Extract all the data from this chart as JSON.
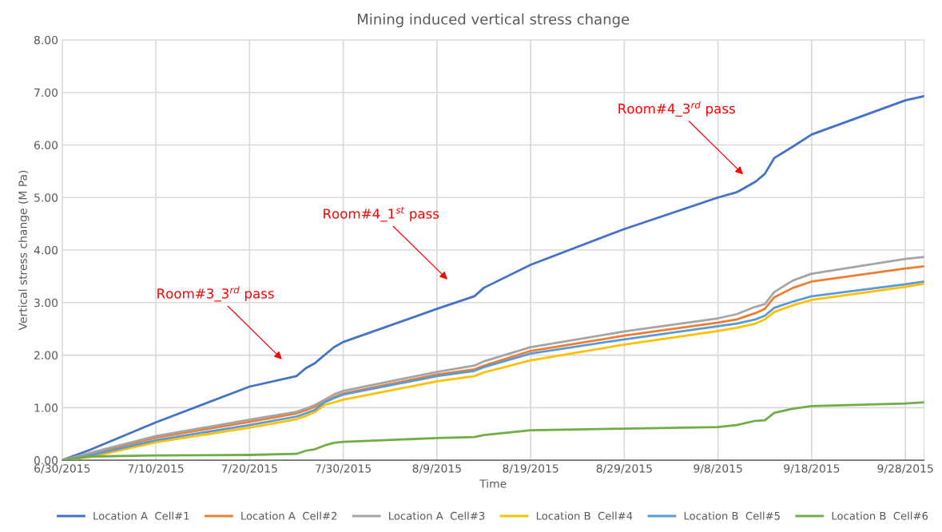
{
  "chart_data": {
    "type": "line",
    "title": "Mining induced vertical stress change",
    "xlabel": "Time",
    "ylabel": "Vertical stress change (M Pa)",
    "x": [
      "2015-06-30",
      "2015-07-03",
      "2015-07-10",
      "2015-07-20",
      "2015-07-25",
      "2015-07-26",
      "2015-07-27",
      "2015-07-28",
      "2015-07-29",
      "2015-07-30",
      "2015-08-09",
      "2015-08-13",
      "2015-08-14",
      "2015-08-19",
      "2015-08-29",
      "2015-09-08",
      "2015-09-10",
      "2015-09-12",
      "2015-09-13",
      "2015-09-14",
      "2015-09-16",
      "2015-09-18",
      "2015-09-28",
      "2015-09-30"
    ],
    "series": [
      {
        "name": "Location A  Cell#1",
        "color": "#4472c4",
        "values": [
          0,
          0.2,
          0.72,
          1.4,
          1.6,
          1.75,
          1.85,
          2.0,
          2.15,
          2.25,
          2.88,
          3.12,
          3.28,
          3.72,
          4.4,
          5.0,
          5.1,
          5.3,
          5.45,
          5.75,
          5.97,
          6.2,
          6.85,
          6.93
        ]
      },
      {
        "name": "Location A  Cell#2",
        "color": "#ed7d31",
        "values": [
          0,
          0.12,
          0.43,
          0.73,
          0.89,
          0.95,
          1.02,
          1.12,
          1.2,
          1.27,
          1.63,
          1.73,
          1.8,
          2.08,
          2.37,
          2.62,
          2.68,
          2.8,
          2.88,
          3.1,
          3.28,
          3.4,
          3.65,
          3.69
        ]
      },
      {
        "name": "Location A  Cell#3",
        "color": "#a5a5a5",
        "values": [
          0,
          0.14,
          0.46,
          0.77,
          0.92,
          0.98,
          1.05,
          1.15,
          1.25,
          1.32,
          1.68,
          1.8,
          1.88,
          2.15,
          2.45,
          2.7,
          2.78,
          2.92,
          2.97,
          3.2,
          3.42,
          3.55,
          3.83,
          3.87
        ]
      },
      {
        "name": "Location B  Cell#4",
        "color": "#ffc000",
        "values": [
          0,
          0.06,
          0.34,
          0.62,
          0.78,
          0.84,
          0.92,
          1.05,
          1.1,
          1.15,
          1.5,
          1.6,
          1.67,
          1.9,
          2.2,
          2.46,
          2.52,
          2.6,
          2.68,
          2.82,
          2.95,
          3.05,
          3.3,
          3.36
        ]
      },
      {
        "name": "Location B  Cell#5",
        "color": "#5b9bd5",
        "values": [
          0,
          0.09,
          0.38,
          0.67,
          0.83,
          0.89,
          0.96,
          1.1,
          1.18,
          1.25,
          1.6,
          1.7,
          1.77,
          2.03,
          2.3,
          2.55,
          2.6,
          2.68,
          2.75,
          2.9,
          3.02,
          3.12,
          3.35,
          3.4
        ]
      },
      {
        "name": "Location B  Cell#6",
        "color": "#70ad47",
        "values": [
          0,
          0.07,
          0.09,
          0.1,
          0.12,
          0.18,
          0.21,
          0.28,
          0.33,
          0.35,
          0.42,
          0.44,
          0.48,
          0.57,
          0.6,
          0.63,
          0.67,
          0.75,
          0.76,
          0.9,
          0.98,
          1.03,
          1.08,
          1.1
        ]
      }
    ],
    "xlim": [
      "2015-06-30",
      "2015-09-30"
    ],
    "xticks": [
      {
        "value": "2015-06-30",
        "label": "6/30/2015"
      },
      {
        "value": "2015-07-10",
        "label": "7/10/2015"
      },
      {
        "value": "2015-07-20",
        "label": "7/20/2015"
      },
      {
        "value": "2015-07-30",
        "label": "7/30/2015"
      },
      {
        "value": "2015-08-09",
        "label": "8/9/2015"
      },
      {
        "value": "2015-08-19",
        "label": "8/19/2015"
      },
      {
        "value": "2015-08-29",
        "label": "8/29/2015"
      },
      {
        "value": "2015-09-08",
        "label": "9/8/2015"
      },
      {
        "value": "2015-09-18",
        "label": "9/18/2015"
      },
      {
        "value": "2015-09-28",
        "label": "9/28/2015"
      }
    ],
    "ylim": [
      0,
      8
    ],
    "yticks": [
      {
        "value": 0,
        "label": "0.00"
      },
      {
        "value": 1,
        "label": "1.00"
      },
      {
        "value": 2,
        "label": "2.00"
      },
      {
        "value": 3,
        "label": "3.00"
      },
      {
        "value": 4,
        "label": "4.00"
      },
      {
        "value": 5,
        "label": "5.00"
      },
      {
        "value": 6,
        "label": "6.00"
      },
      {
        "value": 7,
        "label": "7.00"
      },
      {
        "value": 8,
        "label": "8.00"
      }
    ],
    "annotations": [
      "Room#3_3$^{rd}$ pass",
      "Room#4_1$^{st}$ pass",
      "Room#4_3$^{rd}$ pass"
    ],
    "grid": true,
    "legend": "bottom",
    "marker": "none",
    "line_style": "solid"
  }
}
